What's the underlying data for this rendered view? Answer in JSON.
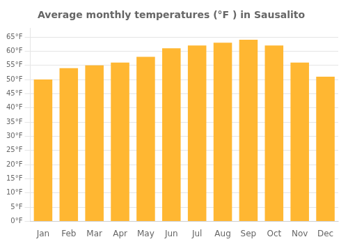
{
  "chart_data": {
    "type": "bar",
    "title": "Average monthly temperatures (°F ) in Sausalito",
    "categories": [
      "Jan",
      "Feb",
      "Mar",
      "Apr",
      "May",
      "Jun",
      "Jul",
      "Aug",
      "Sep",
      "Oct",
      "Nov",
      "Dec"
    ],
    "values": [
      50,
      54,
      55,
      56,
      58,
      61,
      62,
      63,
      64,
      62,
      56,
      51
    ],
    "color": "#FFB732",
    "ylim": [
      0,
      68
    ],
    "yticks": [
      {
        "value": 0,
        "label": "0°F"
      },
      {
        "value": 5,
        "label": "5°F"
      },
      {
        "value": 10,
        "label": "10°F"
      },
      {
        "value": 15,
        "label": "15°F"
      },
      {
        "value": 20,
        "label": "20°F"
      },
      {
        "value": 25,
        "label": "25°F"
      },
      {
        "value": 30,
        "label": "30°F"
      },
      {
        "value": 35,
        "label": "35°F"
      },
      {
        "value": 40,
        "label": "40°F"
      },
      {
        "value": 45,
        "label": "45°F"
      },
      {
        "value": 50,
        "label": "50°F"
      },
      {
        "value": 55,
        "label": "55°F"
      },
      {
        "value": 60,
        "label": "60°F"
      },
      {
        "value": 65,
        "label": "65°F"
      }
    ],
    "grid": true
  }
}
